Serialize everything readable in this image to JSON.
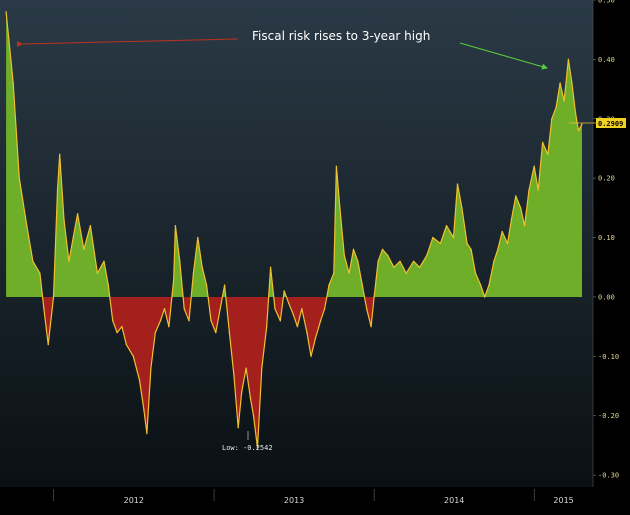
{
  "chart_data": {
    "type": "area",
    "title": "",
    "xlabel": "",
    "ylabel": "",
    "ylim": [
      -0.32,
      0.5
    ],
    "y_ticks": [
      "0.50",
      "0.40",
      "0.30",
      "0.20",
      "0.10",
      "0.00",
      "-0.10",
      "-0.20",
      "-0.30"
    ],
    "x_ticks": [
      "2012",
      "2013",
      "2014",
      "2015"
    ],
    "x_range": [
      "2011-09-01",
      "2015-05-15"
    ],
    "positive_color": "#6fae28",
    "negative_color": "#a3201c",
    "line_color": "#f0c030",
    "background_gradient": [
      "#2a3a46",
      "#0a1014"
    ],
    "series": [
      {
        "points": [
          [
            "2011-09-15",
            0.48
          ],
          [
            "2011-10-01",
            0.36
          ],
          [
            "2011-10-15",
            0.2
          ],
          [
            "2011-11-01",
            0.12
          ],
          [
            "2011-11-15",
            0.06
          ],
          [
            "2011-12-01",
            0.04
          ],
          [
            "2011-12-10",
            -0.02
          ],
          [
            "2011-12-20",
            -0.08
          ],
          [
            "2012-01-01",
            0.0
          ],
          [
            "2012-01-10",
            0.18
          ],
          [
            "2012-01-15",
            0.24
          ],
          [
            "2012-01-25",
            0.13
          ],
          [
            "2012-02-05",
            0.06
          ],
          [
            "2012-02-15",
            0.1
          ],
          [
            "2012-02-25",
            0.14
          ],
          [
            "2012-03-10",
            0.08
          ],
          [
            "2012-03-25",
            0.12
          ],
          [
            "2012-04-10",
            0.04
          ],
          [
            "2012-04-25",
            0.06
          ],
          [
            "2012-05-05",
            0.02
          ],
          [
            "2012-05-15",
            -0.04
          ],
          [
            "2012-05-25",
            -0.06
          ],
          [
            "2012-06-05",
            -0.05
          ],
          [
            "2012-06-15",
            -0.08
          ],
          [
            "2012-07-01",
            -0.1
          ],
          [
            "2012-07-15",
            -0.14
          ],
          [
            "2012-07-25",
            -0.19
          ],
          [
            "2012-08-01",
            -0.23
          ],
          [
            "2012-08-10",
            -0.12
          ],
          [
            "2012-08-20",
            -0.06
          ],
          [
            "2012-09-01",
            -0.04
          ],
          [
            "2012-09-10",
            -0.02
          ],
          [
            "2012-09-20",
            -0.05
          ],
          [
            "2012-10-01",
            0.03
          ],
          [
            "2012-10-05",
            0.12
          ],
          [
            "2012-10-15",
            0.06
          ],
          [
            "2012-10-25",
            -0.02
          ],
          [
            "2012-11-05",
            -0.04
          ],
          [
            "2012-11-15",
            0.04
          ],
          [
            "2012-11-25",
            0.1
          ],
          [
            "2012-12-05",
            0.05
          ],
          [
            "2012-12-15",
            0.02
          ],
          [
            "2012-12-25",
            -0.04
          ],
          [
            "2013-01-05",
            -0.06
          ],
          [
            "2013-01-15",
            -0.02
          ],
          [
            "2013-01-25",
            0.02
          ],
          [
            "2013-02-05",
            -0.06
          ],
          [
            "2013-02-15",
            -0.13
          ],
          [
            "2013-02-25",
            -0.22
          ],
          [
            "2013-03-05",
            -0.16
          ],
          [
            "2013-03-15",
            -0.12
          ],
          [
            "2013-03-25",
            -0.17
          ],
          [
            "2013-04-01",
            -0.2
          ],
          [
            "2013-04-10",
            -0.2542
          ],
          [
            "2013-04-20",
            -0.12
          ],
          [
            "2013-05-01",
            -0.05
          ],
          [
            "2013-05-10",
            0.05
          ],
          [
            "2013-05-20",
            -0.02
          ],
          [
            "2013-06-01",
            -0.04
          ],
          [
            "2013-06-10",
            0.01
          ],
          [
            "2013-06-20",
            -0.01
          ],
          [
            "2013-07-01",
            -0.03
          ],
          [
            "2013-07-10",
            -0.05
          ],
          [
            "2013-07-20",
            -0.02
          ],
          [
            "2013-08-01",
            -0.06
          ],
          [
            "2013-08-10",
            -0.1
          ],
          [
            "2013-08-20",
            -0.07
          ],
          [
            "2013-09-01",
            -0.04
          ],
          [
            "2013-09-10",
            -0.02
          ],
          [
            "2013-09-20",
            0.02
          ],
          [
            "2013-10-01",
            0.04
          ],
          [
            "2013-10-07",
            0.22
          ],
          [
            "2013-10-15",
            0.15
          ],
          [
            "2013-10-25",
            0.07
          ],
          [
            "2013-11-05",
            0.04
          ],
          [
            "2013-11-15",
            0.08
          ],
          [
            "2013-11-25",
            0.06
          ],
          [
            "2013-12-05",
            0.02
          ],
          [
            "2013-12-15",
            -0.02
          ],
          [
            "2013-12-25",
            -0.05
          ],
          [
            "2014-01-01",
            0.0
          ],
          [
            "2014-01-10",
            0.06
          ],
          [
            "2014-01-20",
            0.08
          ],
          [
            "2014-02-01",
            0.07
          ],
          [
            "2014-02-15",
            0.05
          ],
          [
            "2014-03-01",
            0.06
          ],
          [
            "2014-03-15",
            0.04
          ],
          [
            "2014-04-01",
            0.06
          ],
          [
            "2014-04-15",
            0.05
          ],
          [
            "2014-05-01",
            0.07
          ],
          [
            "2014-05-15",
            0.1
          ],
          [
            "2014-06-01",
            0.09
          ],
          [
            "2014-06-15",
            0.12
          ],
          [
            "2014-07-01",
            0.1
          ],
          [
            "2014-07-10",
            0.19
          ],
          [
            "2014-07-20",
            0.15
          ],
          [
            "2014-08-01",
            0.09
          ],
          [
            "2014-08-10",
            0.08
          ],
          [
            "2014-08-20",
            0.04
          ],
          [
            "2014-09-01",
            0.02
          ],
          [
            "2014-09-10",
            0.0
          ],
          [
            "2014-09-20",
            0.02
          ],
          [
            "2014-10-01",
            0.06
          ],
          [
            "2014-10-10",
            0.08
          ],
          [
            "2014-10-20",
            0.11
          ],
          [
            "2014-11-01",
            0.09
          ],
          [
            "2014-11-10",
            0.13
          ],
          [
            "2014-11-20",
            0.17
          ],
          [
            "2014-12-01",
            0.15
          ],
          [
            "2014-12-10",
            0.12
          ],
          [
            "2014-12-20",
            0.18
          ],
          [
            "2015-01-01",
            0.22
          ],
          [
            "2015-01-10",
            0.18
          ],
          [
            "2015-01-20",
            0.26
          ],
          [
            "2015-02-01",
            0.24
          ],
          [
            "2015-02-10",
            0.3
          ],
          [
            "2015-02-20",
            0.32
          ],
          [
            "2015-03-01",
            0.36
          ],
          [
            "2015-03-10",
            0.33
          ],
          [
            "2015-03-20",
            0.4
          ],
          [
            "2015-03-28",
            0.36
          ],
          [
            "2015-04-05",
            0.31
          ],
          [
            "2015-04-12",
            0.28
          ],
          [
            "2015-04-20",
            0.2909
          ]
        ]
      }
    ],
    "annotations": {
      "headline": "Fiscal risk rises to 3-year high",
      "low_label": "Low: -0.2542",
      "last_value": "0.2909"
    },
    "grid": false,
    "legend": "none"
  }
}
